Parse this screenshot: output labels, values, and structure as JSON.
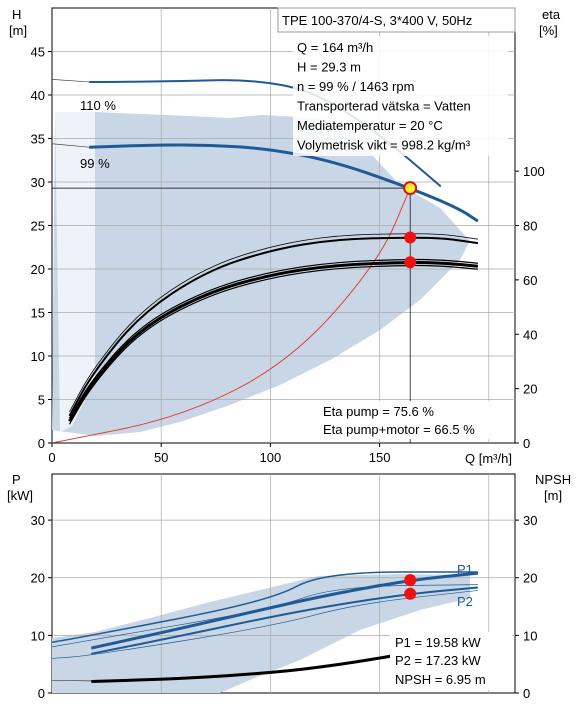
{
  "chart_data": [
    {
      "type": "line",
      "title": "TPE 100-370/4-S, 3*400 V, 50Hz",
      "left_axis": {
        "label": "H",
        "unit": "[m]",
        "ticks": [
          0,
          5,
          10,
          15,
          20,
          25,
          30,
          35,
          40,
          45
        ],
        "ylim": [
          0,
          50
        ]
      },
      "right_axis": {
        "label": "eta",
        "unit": "[%]",
        "ticks": [
          0,
          20,
          40,
          60,
          80,
          100
        ],
        "ylim": [
          0,
          160
        ]
      },
      "x_axis": {
        "label": "Q [m³/h]",
        "ticks": [
          0,
          50,
          100,
          150
        ],
        "xlim": [
          0,
          212
        ]
      },
      "grid": true,
      "curve_labels": [
        "110 %",
        "99 %"
      ],
      "series": [
        {
          "name": "110 %",
          "axis": "H",
          "x": [
            17,
            30,
            60,
            90,
            120,
            150,
            178
          ],
          "y": [
            41.5,
            41.5,
            41.6,
            41.8,
            40.5,
            35.5,
            29.5
          ]
        },
        {
          "name": "99 %",
          "axis": "H",
          "x": [
            17,
            40,
            70,
            100,
            130,
            164,
            186,
            195
          ],
          "y": [
            34,
            34.2,
            34.3,
            33.8,
            32.3,
            29.3,
            27.0,
            25.5
          ]
        },
        {
          "axis": "eta",
          "x": [
            8,
            18,
            40,
            70,
            100,
            130,
            164,
            180,
            195
          ],
          "y": [
            10,
            25,
            47,
            63,
            71,
            75,
            75.6,
            75.3,
            73.5
          ]
        },
        {
          "axis": "eta",
          "x": [
            8,
            18,
            40,
            70,
            100,
            130,
            164,
            180,
            195
          ],
          "y": [
            8,
            22,
            42,
            55,
            62,
            65.5,
            66.5,
            66.2,
            65
          ]
        },
        {
          "axis": "H",
          "x": [
            0,
            60,
            110,
            150,
            164
          ],
          "y": [
            0,
            3,
            9.5,
            21,
            29.3
          ]
        }
      ],
      "operating_point": {
        "Q": 164,
        "H": 29.3,
        "eta_pump": 75.6,
        "eta_pump_motor": 66.5
      },
      "info_lines": [
        "Q = 164 m³/h",
        "H = 29.3 m",
        "n = 99 % / 1463 rpm",
        "Transporterad vätska = Vatten",
        "Mediatemperatur = 20 °C",
        "Volymetrisk vikt = 998.2 kg/m³"
      ],
      "eta_lines": [
        "Eta pump = 75.6 %",
        "Eta pump+motor = 66.5 %"
      ]
    },
    {
      "type": "line",
      "left_axis": {
        "label": "P",
        "unit": "[kW]",
        "ticks": [
          0,
          10,
          20,
          30
        ],
        "ylim": [
          0,
          38
        ]
      },
      "right_axis": {
        "label": "NPSH",
        "unit": "[m]",
        "ticks": [
          0,
          10,
          20,
          30
        ],
        "ylim": [
          0,
          38
        ]
      },
      "x_axis": {
        "xlim": [
          0,
          212
        ]
      },
      "grid": true,
      "series_labels": [
        "P1",
        "P2"
      ],
      "series": [
        {
          "name": "P1",
          "x": [
            18,
            60,
            100,
            130,
            164,
            195
          ],
          "y": [
            7.8,
            11.3,
            14.8,
            17.3,
            19.58,
            20.8
          ]
        },
        {
          "name": "P2",
          "x": [
            18,
            60,
            100,
            130,
            164,
            195
          ],
          "y": [
            6.8,
            10,
            13.2,
            15.3,
            17.23,
            18.3
          ]
        },
        {
          "name": "NPSH",
          "x": [
            18,
            60,
            100,
            130,
            164
          ],
          "y": [
            2,
            2.5,
            3.5,
            4.8,
            6.95
          ]
        }
      ],
      "operating_point": {
        "Q": 164,
        "P1": 19.58,
        "P2": 17.23,
        "NPSH": 6.95
      },
      "info_lines": [
        "P1 = 19.58 kW",
        "P2 = 17.23 kW",
        "NPSH = 6.95 m"
      ]
    }
  ]
}
